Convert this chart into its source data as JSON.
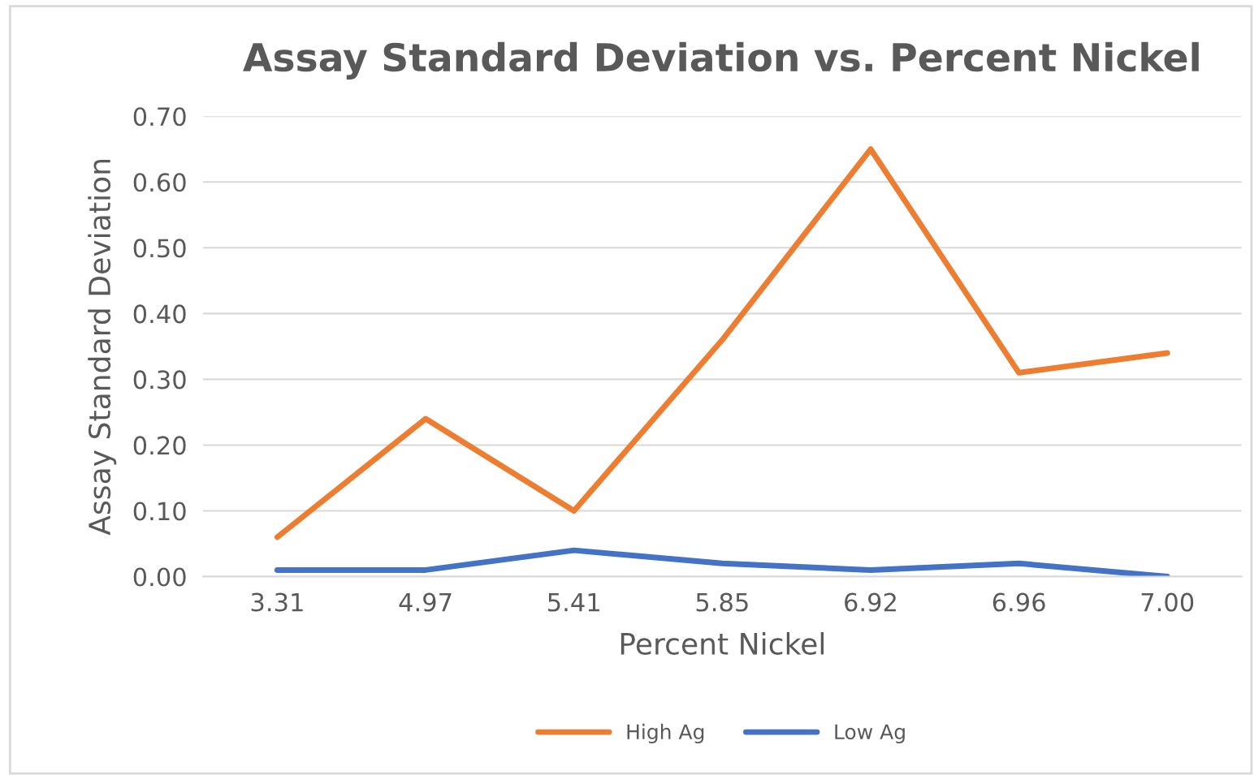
{
  "chart_data": {
    "type": "line",
    "title": "Assay Standard Deviation vs. Percent Nickel",
    "xlabel": "Percent Nickel",
    "ylabel": "Assay Standard Deviation",
    "categories": [
      "3.31",
      "4.97",
      "5.41",
      "5.85",
      "6.92",
      "6.96",
      "7.00"
    ],
    "series": [
      {
        "name": "High Ag",
        "color": "#ed7d31",
        "values": [
          0.06,
          0.24,
          0.1,
          0.36,
          0.65,
          0.31,
          0.34
        ]
      },
      {
        "name": "Low Ag",
        "color": "#4472c4",
        "values": [
          0.01,
          0.01,
          0.04,
          0.02,
          0.01,
          0.02,
          0.0
        ]
      }
    ],
    "ylim": [
      0,
      0.7
    ],
    "yticks": [
      {
        "value": 0,
        "label": "0.00"
      },
      {
        "value": 0.1,
        "label": "0.10"
      },
      {
        "value": 0.2,
        "label": "0.20"
      },
      {
        "value": 0.3,
        "label": "0.30"
      },
      {
        "value": 0.4,
        "label": "0.40"
      },
      {
        "value": 0.5,
        "label": "0.50"
      },
      {
        "value": 0.6,
        "label": "0.60"
      },
      {
        "value": 0.7,
        "label": "0.70"
      }
    ],
    "grid": "y",
    "legend": "bottom",
    "marker": "none",
    "line_style": "solid"
  }
}
